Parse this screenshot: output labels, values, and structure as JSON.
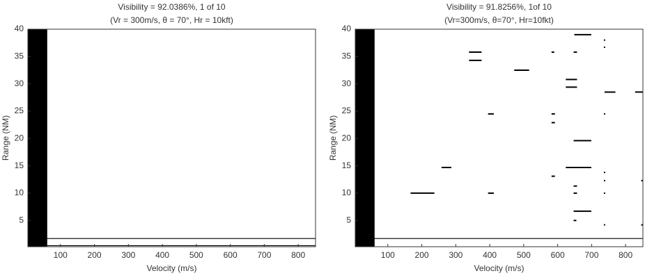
{
  "chart_data": [
    {
      "type": "segments",
      "title": "Visibility = 92.0386%, 1 of 10",
      "subtitle": "(Vr = 300m/s, θ = 70°, Hr = 10kft)",
      "x_label": "Velocity (m/s)",
      "y_label": "Range (NM)",
      "color": "#000000",
      "xlim": [
        4,
        851
      ],
      "ylim": [
        0.2,
        40
      ],
      "xticks": [
        100,
        200,
        300,
        400,
        500,
        600,
        700,
        800
      ],
      "yticks": [
        5,
        10,
        15,
        20,
        25,
        30,
        35,
        40
      ],
      "block": [
        4,
        61
      ],
      "segments": [
        [
          4,
          851,
          1.7
        ],
        [
          4,
          851,
          0.4
        ]
      ]
    },
    {
      "type": "segments",
      "title": "Visibility = 91.8256%, 1of 10",
      "subtitle": "(Vr=300m/s, θ=70°, Hr=10fkt)",
      "x_label": "Velocity (m/s)",
      "y_label": "Range (NM)",
      "color": "#000000",
      "xlim": [
        4,
        851
      ],
      "ylim": [
        0.2,
        40
      ],
      "xticks": [
        100,
        200,
        300,
        400,
        500,
        600,
        700,
        800
      ],
      "yticks": [
        5,
        10,
        15,
        20,
        25,
        30,
        35,
        40
      ],
      "block": [
        4,
        61
      ],
      "segments": [
        [
          649,
          699,
          39.0
        ],
        [
          736,
          740,
          38.0
        ],
        [
          736,
          740,
          36.7
        ],
        [
          339,
          376,
          35.8
        ],
        [
          582,
          590,
          35.8
        ],
        [
          647,
          657,
          35.8
        ],
        [
          339,
          376,
          34.3
        ],
        [
          472,
          516,
          32.5
        ],
        [
          624,
          657,
          30.8
        ],
        [
          624,
          657,
          29.4
        ],
        [
          738,
          770,
          28.5
        ],
        [
          828,
          851,
          28.5
        ],
        [
          395,
          412,
          24.5
        ],
        [
          582,
          592,
          24.5
        ],
        [
          736,
          740,
          24.5
        ],
        [
          582,
          592,
          22.9
        ],
        [
          647,
          699,
          19.6
        ],
        [
          258,
          287,
          14.7
        ],
        [
          624,
          699,
          14.7
        ],
        [
          736,
          740,
          13.8
        ],
        [
          582,
          592,
          13.1
        ],
        [
          736,
          740,
          12.3
        ],
        [
          846,
          851,
          12.3
        ],
        [
          647,
          657,
          11.3
        ],
        [
          167,
          237,
          10.0
        ],
        [
          395,
          412,
          10.0
        ],
        [
          647,
          657,
          10.0
        ],
        [
          736,
          740,
          10.0
        ],
        [
          647,
          699,
          6.7
        ],
        [
          647,
          655,
          5.0
        ],
        [
          736,
          740,
          4.2
        ],
        [
          846,
          851,
          4.2
        ],
        [
          4,
          851,
          1.7
        ]
      ]
    }
  ]
}
